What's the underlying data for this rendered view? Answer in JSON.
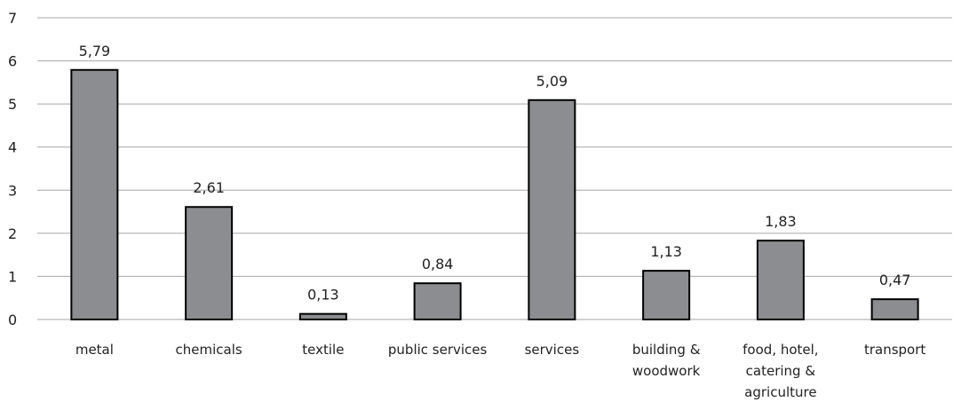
{
  "chart_data": {
    "type": "bar",
    "title": "",
    "xlabel": "",
    "ylabel": "",
    "categories": [
      [
        "metal"
      ],
      [
        "chemicals"
      ],
      [
        "textile"
      ],
      [
        "public services"
      ],
      [
        "services"
      ],
      [
        "building &",
        "woodwork"
      ],
      [
        "food, hotel,",
        "catering &",
        "agriculture"
      ],
      [
        "transport"
      ]
    ],
    "values": [
      5.79,
      2.61,
      0.13,
      0.84,
      5.09,
      1.13,
      1.83,
      0.47
    ],
    "value_labels": [
      "5,79",
      "2,61",
      "0,13",
      "0,84",
      "5,09",
      "1,13",
      "1,83",
      "0,47"
    ],
    "yticks": [
      "0",
      "1",
      "2",
      "3",
      "4",
      "5",
      "6",
      "7"
    ],
    "ylim": [
      0,
      7
    ],
    "grid": true,
    "legend": "none",
    "colors": {
      "bar": "#8c8d91",
      "bar_border": "#000000",
      "grid": "#a6a6a6"
    }
  }
}
